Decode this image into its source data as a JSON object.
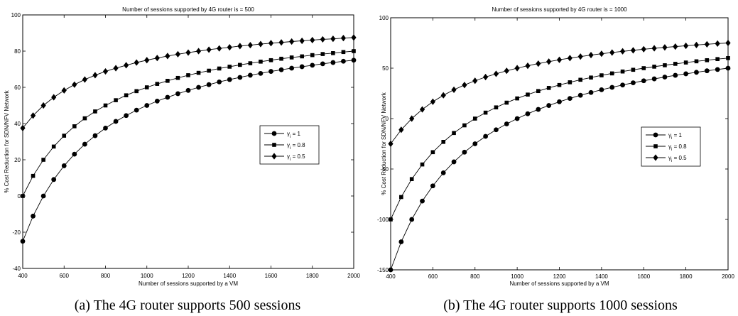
{
  "chart_data": [
    {
      "type": "line",
      "title": "Number of sessions supported by 4G router is = 500",
      "xlabel": "Number of sessions supported by a VM",
      "ylabel": "% Cost Reduction for SDN/NFV Network",
      "xlim": [
        400,
        2000
      ],
      "ylim": [
        -40,
        100
      ],
      "xticks": [
        400,
        600,
        800,
        1000,
        1200,
        1400,
        1600,
        1800,
        2000
      ],
      "yticks": [
        -40,
        -20,
        0,
        20,
        40,
        60,
        80,
        100
      ],
      "grid": false,
      "legend_position": "center-right",
      "caption": "(a) The 4G router supports 500 sessions",
      "x": [
        400,
        450,
        500,
        550,
        600,
        650,
        700,
        750,
        800,
        850,
        900,
        950,
        1000,
        1050,
        1100,
        1150,
        1200,
        1250,
        1300,
        1350,
        1400,
        1450,
        1500,
        1550,
        1600,
        1650,
        1700,
        1750,
        1800,
        1850,
        1900,
        1950,
        2000
      ],
      "series": [
        {
          "name": "γᵢ = 1",
          "marker": "circle",
          "values": [
            -25,
            -11.1,
            0,
            9.1,
            16.7,
            23.1,
            28.6,
            33.3,
            37.5,
            41.2,
            44.4,
            47.4,
            50,
            52.4,
            54.5,
            56.5,
            58.3,
            60,
            61.5,
            63,
            64.3,
            65.5,
            66.7,
            67.7,
            68.8,
            69.7,
            70.6,
            71.4,
            72.2,
            73,
            73.7,
            74.4,
            75
          ]
        },
        {
          "name": "γᵢ = 0.8",
          "marker": "square",
          "values": [
            0,
            11.1,
            20,
            27.3,
            33.3,
            38.5,
            42.9,
            46.7,
            50,
            52.9,
            55.6,
            57.9,
            60,
            61.9,
            63.6,
            65.2,
            66.7,
            68,
            69.2,
            70.4,
            71.4,
            72.4,
            73.3,
            74.2,
            75,
            75.8,
            76.5,
            77.1,
            77.8,
            78.4,
            78.9,
            79.5,
            80
          ]
        },
        {
          "name": "γᵢ = 0.5",
          "marker": "diamond",
          "values": [
            37.5,
            44.4,
            50,
            54.5,
            58.3,
            61.5,
            64.3,
            66.7,
            68.8,
            70.6,
            72.2,
            73.7,
            75,
            76.2,
            77.3,
            78.3,
            79.2,
            80,
            80.8,
            81.5,
            82.1,
            82.8,
            83.3,
            83.9,
            84.4,
            84.8,
            85.3,
            85.7,
            86.1,
            86.5,
            86.8,
            87.2,
            87.5
          ]
        }
      ]
    },
    {
      "type": "line",
      "title": "Number of sessions supported by 4G router is = 1000",
      "xlabel": "Number of sessions supported by a VM",
      "ylabel": "% Cost Reduction for SDN/NFV Network",
      "xlim": [
        400,
        2000
      ],
      "ylim": [
        -150,
        100
      ],
      "xticks": [
        400,
        600,
        800,
        1000,
        1200,
        1400,
        1600,
        1800,
        2000
      ],
      "yticks": [
        -150,
        -100,
        -50,
        0,
        50,
        100
      ],
      "grid": false,
      "legend_position": "center-right",
      "caption": "(b) The 4G router supports 1000 sessions",
      "x": [
        400,
        450,
        500,
        550,
        600,
        650,
        700,
        750,
        800,
        850,
        900,
        950,
        1000,
        1050,
        1100,
        1150,
        1200,
        1250,
        1300,
        1350,
        1400,
        1450,
        1500,
        1550,
        1600,
        1650,
        1700,
        1750,
        1800,
        1850,
        1900,
        1950,
        2000
      ],
      "series": [
        {
          "name": "γᵢ = 1",
          "marker": "circle",
          "values": [
            -150,
            -122.2,
            -100,
            -81.8,
            -66.7,
            -53.8,
            -42.9,
            -33.3,
            -25,
            -17.6,
            -11.1,
            -5.3,
            0,
            4.8,
            9.1,
            13,
            16.7,
            20,
            23.1,
            25.9,
            28.6,
            31,
            33.3,
            35.5,
            37.5,
            39.4,
            41.2,
            42.9,
            44.4,
            45.9,
            47.4,
            48.7,
            50
          ]
        },
        {
          "name": "γᵢ = 0.8",
          "marker": "square",
          "values": [
            -100,
            -77.8,
            -60,
            -45.5,
            -33.3,
            -23.1,
            -14.3,
            -6.7,
            0,
            5.9,
            11.1,
            15.8,
            20,
            23.8,
            27.3,
            30.4,
            33.3,
            36,
            38.5,
            40.7,
            42.9,
            44.8,
            46.7,
            48.4,
            50,
            51.5,
            52.9,
            54.3,
            55.6,
            56.8,
            57.9,
            59,
            60
          ]
        },
        {
          "name": "γᵢ = 0.5",
          "marker": "diamond",
          "values": [
            -25,
            -11.1,
            0,
            9.1,
            16.7,
            23.1,
            28.6,
            33.3,
            37.5,
            41.2,
            44.4,
            47.4,
            50,
            52.4,
            54.5,
            56.5,
            58.3,
            60,
            61.5,
            63,
            64.3,
            65.5,
            66.7,
            67.7,
            68.8,
            69.7,
            70.6,
            71.4,
            72.2,
            73,
            73.7,
            74.4,
            75
          ]
        }
      ]
    }
  ]
}
